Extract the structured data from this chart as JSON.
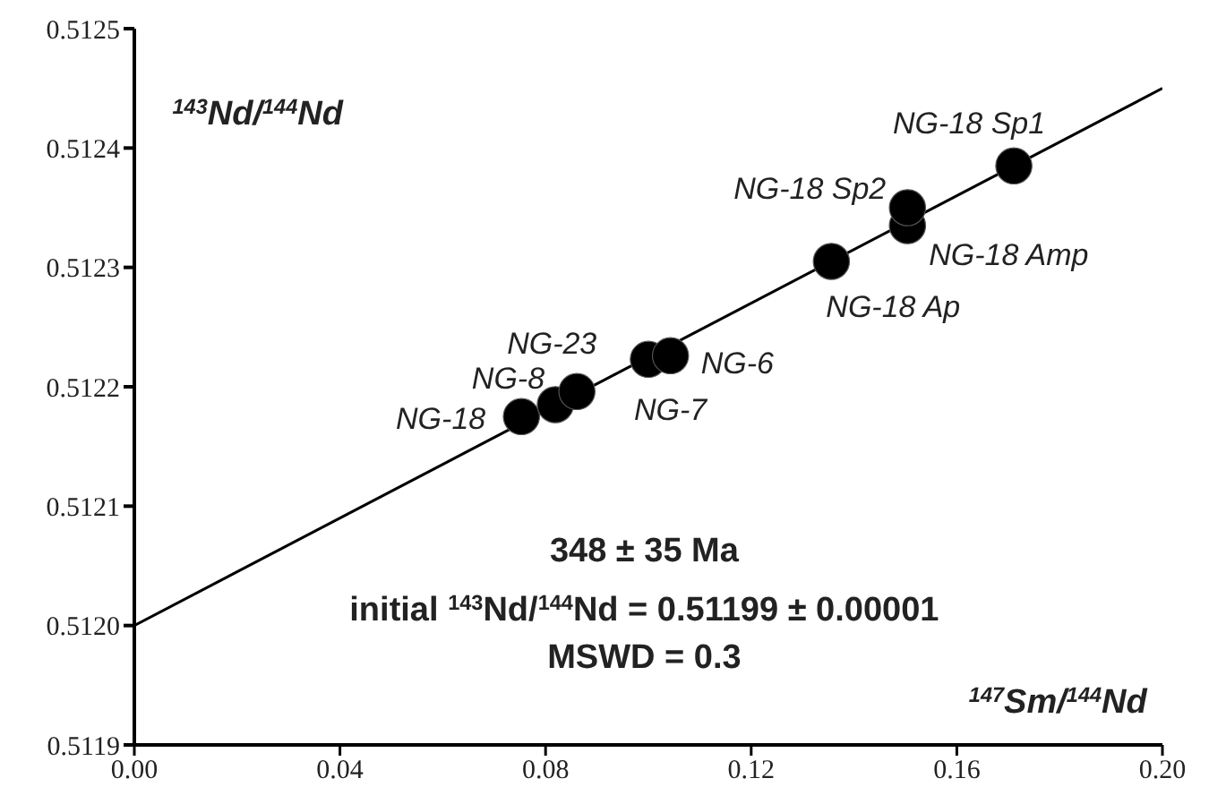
{
  "chart_data": {
    "type": "scatter",
    "xlabel": "$^{147}$Sm/$^{144}$Nd",
    "ylabel": "$^{143}$Nd/$^{144}$Nd",
    "xlim": [
      0,
      0.2
    ],
    "ylim": [
      0.5119,
      0.5125
    ],
    "xticks": [
      {
        "value": 0,
        "label": "0.00"
      },
      {
        "value": 0.04,
        "label": "0.04"
      },
      {
        "value": 0.08,
        "label": "0.08"
      },
      {
        "value": 0.12,
        "label": "0.12"
      },
      {
        "value": 0.16,
        "label": "0.16"
      },
      {
        "value": 0.2,
        "label": "0.20"
      }
    ],
    "yticks": [
      {
        "value": 0.5119,
        "label": "0.5119"
      },
      {
        "value": 0.512,
        "label": "0.5120"
      },
      {
        "value": 0.5121,
        "label": "0.5121"
      },
      {
        "value": 0.5122,
        "label": "0.5122"
      },
      {
        "value": 0.5123,
        "label": "0.5123"
      },
      {
        "value": 0.5124,
        "label": "0.5124"
      },
      {
        "value": 0.5125,
        "label": "0.5125"
      }
    ],
    "grid": false,
    "legend": false,
    "series": [
      {
        "marker": "circle",
        "color": "#000000",
        "x": [
          0.0753,
          0.0819,
          0.0861,
          0.1,
          0.1043,
          0.1356,
          0.1504,
          0.1504,
          0.1711
        ],
        "values": [
          0.512175,
          0.512185,
          0.512196,
          0.512223,
          0.512226,
          0.512305,
          0.512335,
          0.51235,
          0.512385
        ]
      },
      {
        "type": "line",
        "marker": "none",
        "color": "#000000",
        "x": [
          0,
          0.2
        ],
        "values": [
          0.512,
          0.51245
        ]
      }
    ],
    "annotations": [
      {
        "text": "NG-18",
        "x": 0.0753,
        "y": 0.512175
      },
      {
        "text": "NG-8",
        "x": 0.0819,
        "y": 0.512185
      },
      {
        "text": "NG-23",
        "x": 0.0861,
        "y": 0.512196
      },
      {
        "text": "NG-7",
        "x": 0.1,
        "y": 0.512223
      },
      {
        "text": "NG-6",
        "x": 0.1043,
        "y": 0.512226
      },
      {
        "text": "NG-18 Ap",
        "x": 0.1356,
        "y": 0.512305
      },
      {
        "text": "NG-18 Amp",
        "x": 0.1504,
        "y": 0.512335
      },
      {
        "text": "NG-18 Sp2",
        "x": 0.1504,
        "y": 0.51235
      },
      {
        "text": "NG-18 Sp1",
        "x": 0.1711,
        "y": 0.512385
      },
      "348 ± 35 Ma",
      "initial $^{143}$Nd/$^{144}$Nd = 0.51199 ± 0.00001",
      "MSWD = 0.3"
    ]
  }
}
